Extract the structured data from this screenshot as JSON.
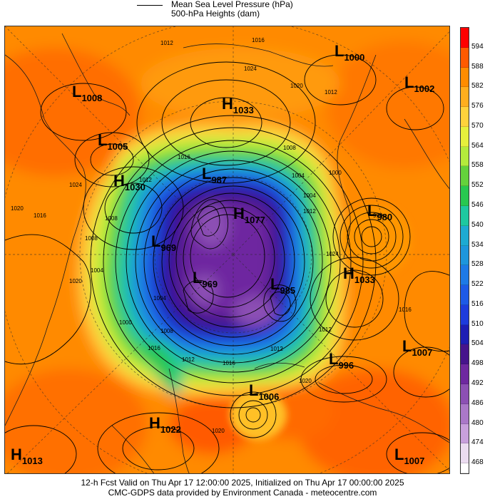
{
  "legend": {
    "line1": "Mean Sea Level Pressure (hPa)",
    "line2": "500-hPa Heights (dam)"
  },
  "colorbar": {
    "labels": [
      "594",
      "588",
      "582",
      "576",
      "570",
      "564",
      "558",
      "552",
      "546",
      "540",
      "534",
      "528",
      "522",
      "516",
      "510",
      "504",
      "498",
      "492",
      "486",
      "480",
      "474",
      "468"
    ],
    "colors": [
      "#ff0000",
      "#ff5a00",
      "#ff8c00",
      "#ffae1e",
      "#ffd23c",
      "#e6f03c",
      "#b4eb3c",
      "#64d23c",
      "#28c850",
      "#1ec8a0",
      "#1eaad2",
      "#1e96dc",
      "#1e7ae6",
      "#1e5ae6",
      "#1e3cdc",
      "#1e1eb4",
      "#46148c",
      "#6e28a0",
      "#8c50b4",
      "#aa78c8",
      "#c8a0dc",
      "#ebdcf0"
    ]
  },
  "systems": [
    {
      "type": "L",
      "value": "1000"
    },
    {
      "type": "L",
      "value": "1008"
    },
    {
      "type": "H",
      "value": "1033"
    },
    {
      "type": "L",
      "value": "1002"
    },
    {
      "type": "L",
      "value": "1005"
    },
    {
      "type": "H",
      "value": "1030"
    },
    {
      "type": "L",
      "value": "987"
    },
    {
      "type": "H",
      "value": "1077"
    },
    {
      "type": "L",
      "value": "980"
    },
    {
      "type": "L",
      "value": "969"
    },
    {
      "type": "L",
      "value": "969"
    },
    {
      "type": "L",
      "value": "985"
    },
    {
      "type": "H",
      "value": "1033"
    },
    {
      "type": "L",
      "value": "1007"
    },
    {
      "type": "L",
      "value": "996"
    },
    {
      "type": "L",
      "value": "1006"
    },
    {
      "type": "H",
      "value": "1022"
    },
    {
      "type": "H",
      "value": "1013"
    },
    {
      "type": "L",
      "value": "1007"
    }
  ],
  "isobar_labels": [
    "1012",
    "1016",
    "1024",
    "1020",
    "1012",
    "1008",
    "1004",
    "1016",
    "1012",
    "1008",
    "1004",
    "1000",
    "1016",
    "1020",
    "1008",
    "1020",
    "1024",
    "1012",
    "1004",
    "1000",
    "996",
    "1016",
    "1012",
    "1012",
    "1016",
    "1020",
    "1020",
    "1012",
    "1008",
    "1004",
    "1016",
    "1024"
  ],
  "footer": {
    "line1": "12-h Fcst Valid on Thu Apr 17 12:00:00 2025, Initialized on Thu Apr 17 00:00:00 2025",
    "line2": "CMC-GDPS data provided by Environment Canada - meteocentre.com"
  }
}
